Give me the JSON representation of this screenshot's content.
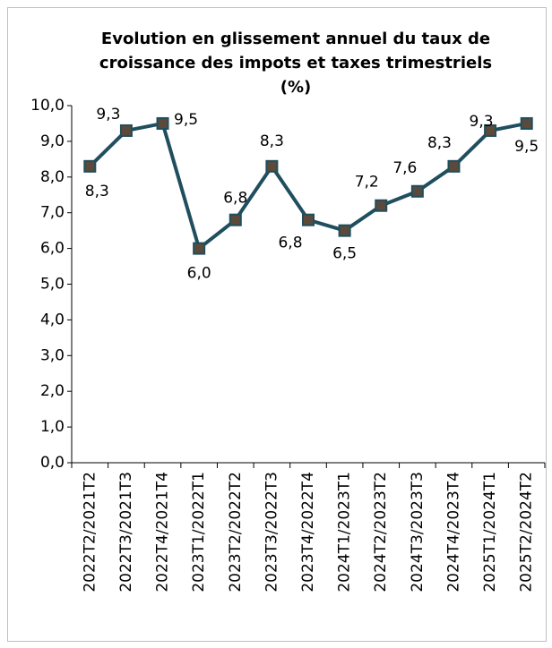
{
  "chart_data": {
    "type": "line",
    "title": "Evolution en glissement annuel du taux de croissance des impots et taxes trimestriels (%)",
    "categories": [
      "2022T2/2021T2",
      "2022T3/2021T3",
      "2022T4/2021T4",
      "2023T1/2022T1",
      "2023T2/2022T2",
      "2023T3/2022T3",
      "2023T4/2022T4",
      "2024T1/2023T1",
      "2024T2/2023T2",
      "2024T3/2023T3",
      "2024T4/2023T4",
      "2025T1/2024T1",
      "2025T2/2024T2"
    ],
    "values": [
      8.3,
      9.3,
      9.5,
      6.0,
      6.8,
      8.3,
      6.8,
      6.5,
      7.2,
      7.6,
      8.3,
      9.3,
      9.5
    ],
    "value_labels": [
      "8,3",
      "9,3",
      "9,5",
      "6,0",
      "6,8",
      "8,3",
      "6,8",
      "6,5",
      "7,2",
      "7,6",
      "8,3",
      "9,3",
      "9,5"
    ],
    "color": "#1f4e5f",
    "marker_color": "#5b4a3a",
    "ylim": [
      0,
      10
    ],
    "yticks": [
      {
        "value": 0,
        "label": "0,0"
      },
      {
        "value": 1,
        "label": "1,0"
      },
      {
        "value": 2,
        "label": "2,0"
      },
      {
        "value": 3,
        "label": "3,0"
      },
      {
        "value": 4,
        "label": "4,0"
      },
      {
        "value": 5,
        "label": "5,0"
      },
      {
        "value": 6,
        "label": "6,0"
      },
      {
        "value": 7,
        "label": "7,0"
      },
      {
        "value": 8,
        "label": "8,0"
      },
      {
        "value": 9,
        "label": "9,0"
      },
      {
        "value": 10,
        "label": "10,0"
      }
    ]
  }
}
